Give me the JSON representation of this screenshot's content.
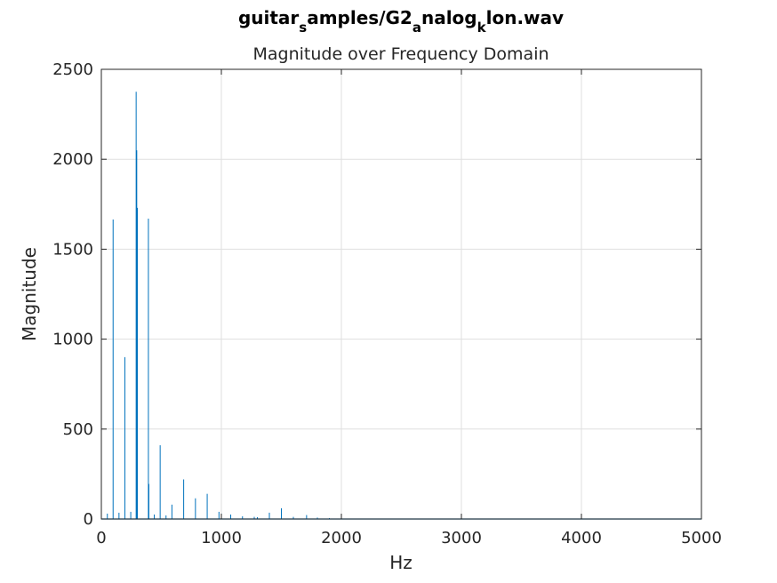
{
  "chart_data": {
    "type": "line",
    "title_parts": [
      {
        "text": "guitar",
        "sub": false
      },
      {
        "text": "s",
        "sub": true
      },
      {
        "text": "amples/G2",
        "sub": false
      },
      {
        "text": "a",
        "sub": true
      },
      {
        "text": "nalog",
        "sub": false
      },
      {
        "text": "k",
        "sub": true
      },
      {
        "text": "lon.wav",
        "sub": false
      }
    ],
    "subtitle": "Magnitude over Frequency Domain",
    "xlabel": "Hz",
    "ylabel": "Magnitude",
    "xlim": [
      0,
      5000
    ],
    "ylim": [
      0,
      2500
    ],
    "xticks": [
      0,
      1000,
      2000,
      3000,
      4000,
      5000
    ],
    "yticks": [
      0,
      500,
      1000,
      1500,
      2000,
      2500
    ],
    "grid": true,
    "series_color": "#0072bd",
    "peaks": [
      {
        "x": 50,
        "y": 30
      },
      {
        "x": 98,
        "y": 1665
      },
      {
        "x": 147,
        "y": 35
      },
      {
        "x": 196,
        "y": 900
      },
      {
        "x": 245,
        "y": 40
      },
      {
        "x": 290,
        "y": 2375
      },
      {
        "x": 295,
        "y": 2050
      },
      {
        "x": 300,
        "y": 1730
      },
      {
        "x": 392,
        "y": 1670
      },
      {
        "x": 396,
        "y": 195
      },
      {
        "x": 441,
        "y": 25
      },
      {
        "x": 490,
        "y": 410
      },
      {
        "x": 539,
        "y": 20
      },
      {
        "x": 588,
        "y": 80
      },
      {
        "x": 686,
        "y": 220
      },
      {
        "x": 784,
        "y": 115
      },
      {
        "x": 882,
        "y": 140
      },
      {
        "x": 980,
        "y": 40
      },
      {
        "x": 1000,
        "y": 30
      },
      {
        "x": 1078,
        "y": 25
      },
      {
        "x": 1176,
        "y": 15
      },
      {
        "x": 1274,
        "y": 12
      },
      {
        "x": 1300,
        "y": 10
      },
      {
        "x": 1400,
        "y": 35
      },
      {
        "x": 1500,
        "y": 60
      },
      {
        "x": 1600,
        "y": 12
      },
      {
        "x": 1710,
        "y": 22
      },
      {
        "x": 1800,
        "y": 8
      },
      {
        "x": 1900,
        "y": 5
      }
    ]
  }
}
